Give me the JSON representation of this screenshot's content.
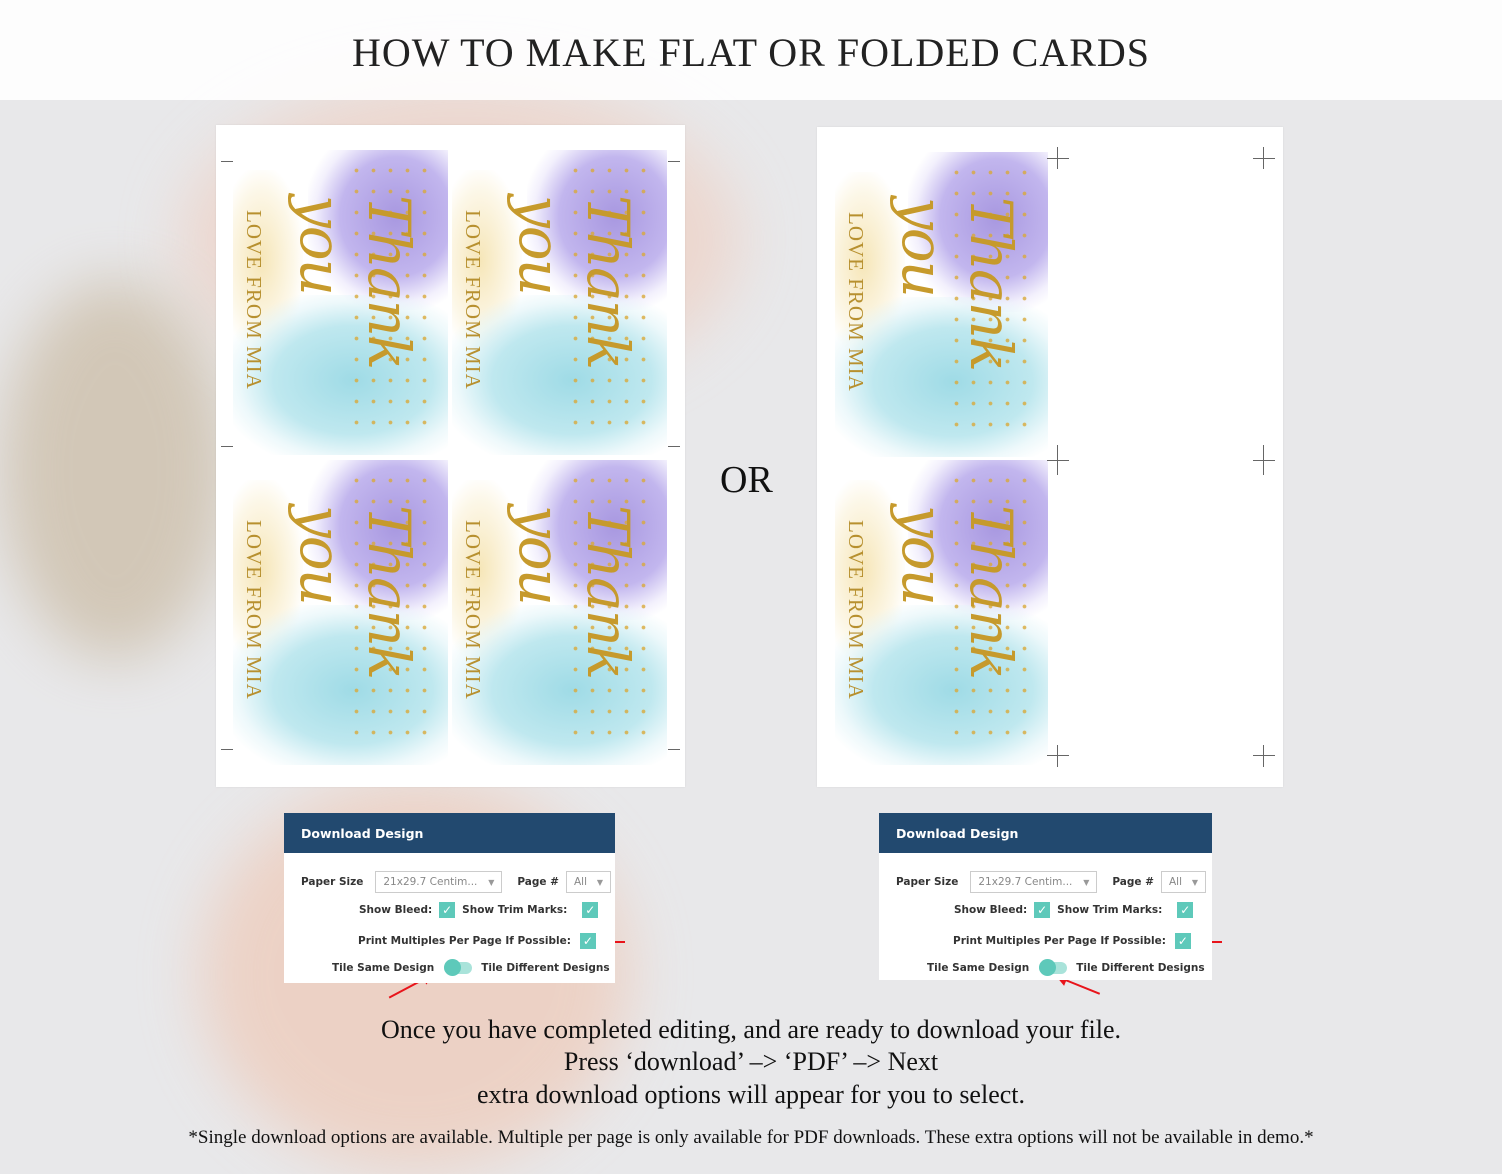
{
  "title": "HOW TO MAKE FLAT OR FOLDED CARDS",
  "card": {
    "script_text": "Thank you",
    "name_text": "LOVE FROM MIA"
  },
  "separator": "OR",
  "dialogs": [
    {
      "header": "Download Design",
      "paper_size_label": "Paper Size",
      "paper_size_value": "21x29.7 Centim...",
      "page_label": "Page #",
      "page_value": "All",
      "show_bleed_label": "Show Bleed:",
      "show_bleed": true,
      "show_trim_label": "Show Trim Marks:",
      "show_trim": true,
      "multiples_label": "Print Multiples Per Page If Possible:",
      "multiples": true,
      "tile_same_label": "Tile Same Design",
      "tile_diff_label": "Tile Different Designs",
      "tile_mode": "same"
    },
    {
      "header": "Download Design",
      "paper_size_label": "Paper Size",
      "paper_size_value": "21x29.7 Centim...",
      "page_label": "Page #",
      "page_value": "All",
      "show_bleed_label": "Show Bleed:",
      "show_bleed": true,
      "show_trim_label": "Show Trim Marks:",
      "show_trim": true,
      "multiples_label": "Print Multiples Per Page If Possible:",
      "multiples": true,
      "tile_same_label": "Tile Same Design",
      "tile_diff_label": "Tile Different Designs",
      "tile_mode": "same"
    }
  ],
  "instructions": [
    "Once you have completed editing, and are ready to download your file.",
    "Press ‘download’ –> ‘PDF’ –> Next",
    "extra download options will appear for you to select."
  ],
  "footnote": "*Single download options are available. Multiple per page is only available for PDF downloads. These extra options will not be available in demo.*",
  "colors": {
    "dialog_header": "#22496f",
    "accent": "#5ec9ba",
    "arrow": "#e8141b"
  }
}
